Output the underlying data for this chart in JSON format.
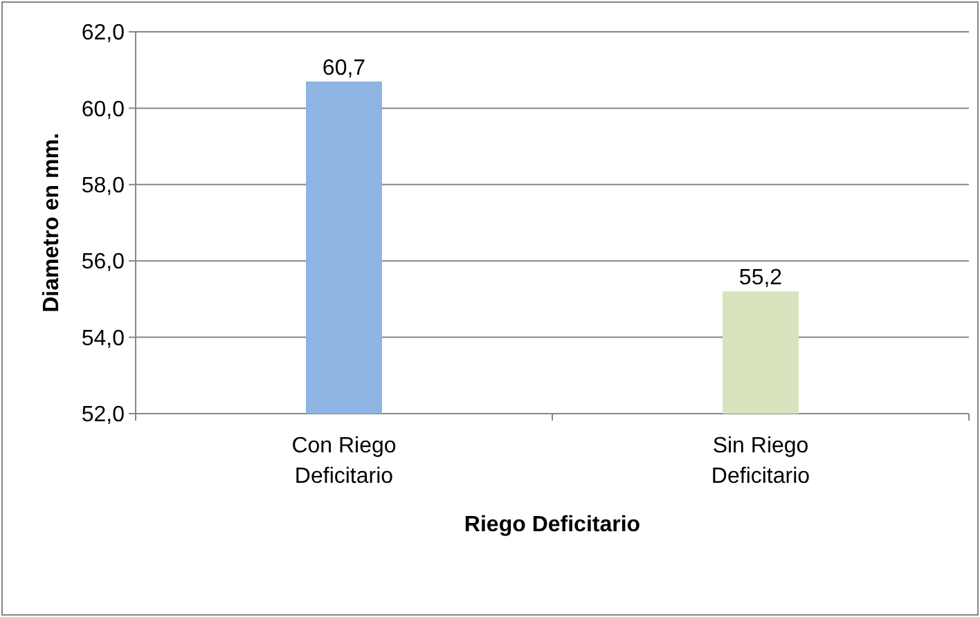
{
  "chart_data": {
    "type": "bar",
    "xlabel": "Riego Deficitario",
    "ylabel": "Diametro en mm.",
    "categories": [
      "Con Riego Deficitario",
      "Sin Riego Deficitario"
    ],
    "values": [
      60.7,
      55.2
    ],
    "colors": [
      "#8eb4e3",
      "#d7e4bd"
    ],
    "value_labels": [
      "60,7",
      "55,2"
    ],
    "ylim": [
      52,
      62
    ],
    "yticks": [
      {
        "value": 52,
        "label": "52,0"
      },
      {
        "value": 54,
        "label": "54,0"
      },
      {
        "value": 56,
        "label": "56,0"
      },
      {
        "value": 58,
        "label": "58,0"
      },
      {
        "value": 60,
        "label": "60,0"
      },
      {
        "value": 62,
        "label": "62,0"
      }
    ],
    "grid": "y"
  }
}
